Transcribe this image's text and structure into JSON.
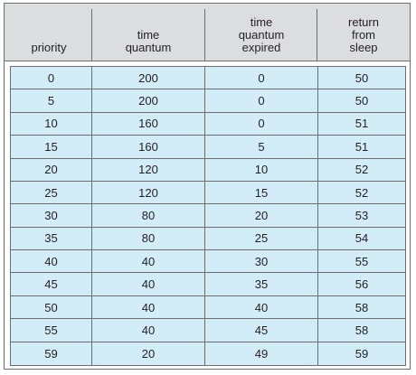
{
  "table": {
    "headers": [
      "priority",
      "time\nquantum",
      "time\nquantum\nexpired",
      "return\nfrom\nsleep"
    ],
    "rows": [
      [
        "0",
        "200",
        "0",
        "50"
      ],
      [
        "5",
        "200",
        "0",
        "50"
      ],
      [
        "10",
        "160",
        "0",
        "51"
      ],
      [
        "15",
        "160",
        "5",
        "51"
      ],
      [
        "20",
        "120",
        "10",
        "52"
      ],
      [
        "25",
        "120",
        "15",
        "52"
      ],
      [
        "30",
        "80",
        "20",
        "53"
      ],
      [
        "35",
        "80",
        "25",
        "54"
      ],
      [
        "40",
        "40",
        "30",
        "55"
      ],
      [
        "45",
        "40",
        "35",
        "56"
      ],
      [
        "50",
        "40",
        "40",
        "58"
      ],
      [
        "55",
        "40",
        "45",
        "58"
      ],
      [
        "59",
        "20",
        "49",
        "59"
      ]
    ]
  },
  "colors": {
    "header_bg": "#dcdddf",
    "row_bg": "#d2ecf8",
    "border": "#6d6e70",
    "text": "#231f20"
  }
}
